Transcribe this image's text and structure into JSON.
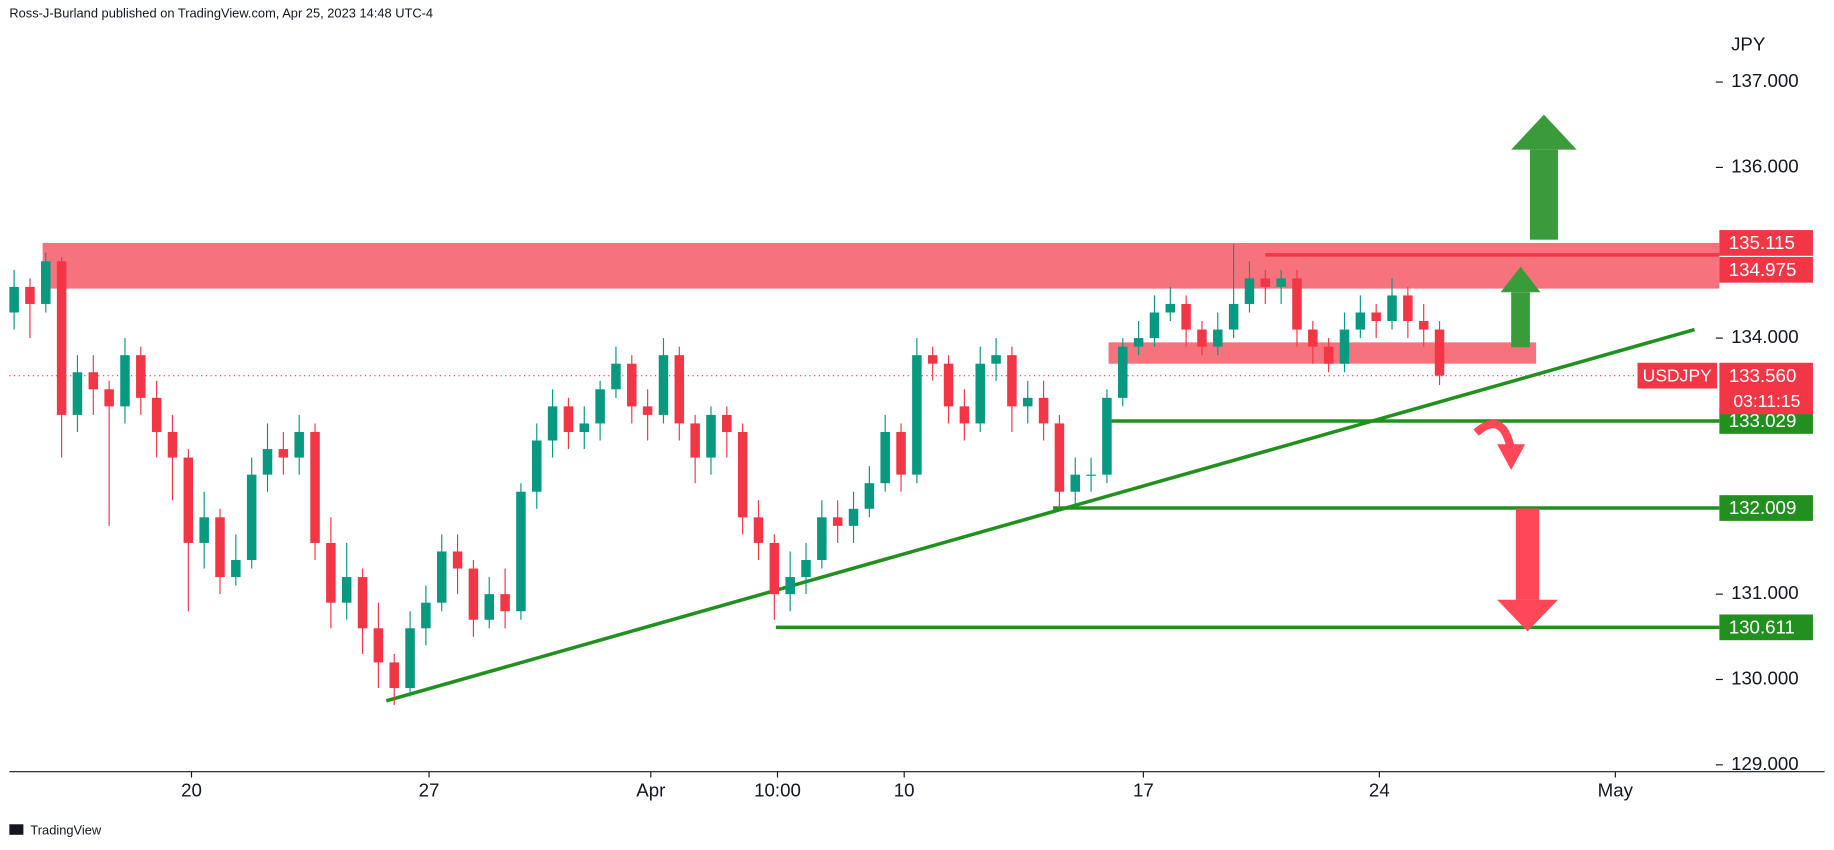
{
  "header": "Ross-J-Burland published on TradingView.com, Apr 25, 2023 14:48 UTC-4",
  "footer": "TradingView",
  "chart_data": {
    "type": "candlestick",
    "currency": "JPY",
    "up_color": "#089981",
    "down_color": "#f23645",
    "xlim": [
      -0.3,
      107.3
    ],
    "xticks": [
      {
        "value": 11.2,
        "label": "20"
      },
      {
        "value": 26.2,
        "label": "27"
      },
      {
        "value": 40.2,
        "label": "Apr"
      },
      {
        "value": 48.2,
        "label": "10:00"
      },
      {
        "value": 56.2,
        "label": "10"
      },
      {
        "value": 71.3,
        "label": "17"
      },
      {
        "value": 86.2,
        "label": "24"
      },
      {
        "value": 101.1,
        "label": "May"
      }
    ],
    "ylim": [
      128.92,
      137.66
    ],
    "yticks": [
      {
        "value": 129,
        "label": "129.000"
      },
      {
        "value": 130,
        "label": "130.000"
      },
      {
        "value": 131,
        "label": "131.000"
      },
      {
        "value": 134,
        "label": "134.000"
      },
      {
        "value": 136,
        "label": "136.000"
      },
      {
        "value": 137,
        "label": "137.000"
      }
    ],
    "open": [
      134.3,
      134.6,
      134.4,
      134.9,
      133.1,
      133.6,
      133.4,
      133.2,
      133.8,
      133.3,
      132.9,
      132.6,
      131.6,
      131.9,
      131.2,
      131.4,
      132.4,
      132.7,
      132.6,
      132.9,
      131.6,
      130.9,
      131.2,
      130.6,
      130.2,
      129.9,
      130.6,
      130.9,
      131.5,
      131.3,
      130.7,
      131.0,
      130.8,
      132.2,
      132.8,
      133.2,
      132.9,
      133.0,
      133.4,
      133.7,
      133.2,
      133.1,
      133.8,
      133.0,
      132.6,
      133.1,
      132.9,
      131.9,
      131.6,
      131.0,
      131.2,
      131.4,
      131.9,
      131.8,
      132.0,
      132.3,
      132.9,
      132.4,
      133.8,
      133.7,
      133.2,
      133.0,
      133.7,
      133.8,
      133.2,
      133.3,
      133.0,
      132.2,
      132.4,
      132.4,
      133.3,
      133.9,
      134.0,
      134.3,
      134.4,
      134.1,
      133.9,
      134.1,
      134.4,
      134.7,
      134.6,
      134.7,
      134.1,
      133.9,
      133.7,
      134.1,
      134.3,
      134.2,
      134.5,
      134.2,
      134.1
    ],
    "high": [
      134.8,
      134.7,
      135.0,
      134.95,
      133.8,
      133.8,
      133.5,
      134.0,
      133.9,
      133.5,
      133.1,
      132.7,
      132.2,
      132.0,
      131.7,
      132.6,
      133.0,
      132.9,
      133.1,
      133.0,
      131.9,
      131.6,
      131.3,
      130.9,
      130.3,
      130.8,
      131.1,
      131.7,
      131.7,
      131.4,
      131.2,
      131.3,
      132.3,
      133.0,
      133.4,
      133.3,
      133.2,
      133.5,
      133.9,
      133.8,
      133.4,
      134.0,
      133.9,
      133.1,
      133.2,
      133.2,
      133.0,
      132.1,
      131.7,
      131.5,
      131.6,
      132.1,
      132.1,
      132.2,
      132.5,
      133.1,
      133.0,
      134.0,
      133.9,
      133.8,
      133.4,
      133.9,
      134.0,
      133.9,
      133.5,
      133.5,
      133.1,
      132.6,
      132.6,
      133.4,
      134.0,
      134.2,
      134.5,
      134.6,
      134.5,
      134.2,
      134.3,
      135.1,
      134.9,
      134.8,
      134.8,
      134.8,
      134.2,
      134.0,
      134.3,
      134.5,
      134.4,
      134.7,
      134.6,
      134.4,
      134.2
    ],
    "low": [
      134.1,
      134.0,
      134.3,
      132.6,
      132.9,
      133.1,
      131.8,
      133.0,
      133.1,
      132.6,
      132.1,
      130.8,
      131.3,
      131.0,
      131.1,
      131.3,
      132.2,
      132.4,
      132.4,
      131.4,
      130.6,
      130.7,
      130.3,
      129.9,
      129.7,
      129.8,
      130.4,
      130.8,
      131.0,
      130.5,
      130.6,
      130.6,
      130.7,
      132.0,
      132.6,
      132.7,
      132.7,
      132.8,
      133.3,
      133.0,
      132.8,
      133.0,
      132.8,
      132.3,
      132.4,
      132.6,
      131.7,
      131.4,
      130.7,
      130.8,
      131.0,
      131.3,
      131.6,
      131.6,
      131.9,
      132.2,
      132.2,
      132.3,
      133.5,
      133.0,
      132.8,
      132.9,
      133.5,
      132.9,
      133.0,
      132.8,
      132.0,
      132.0,
      132.2,
      132.3,
      133.2,
      133.8,
      133.9,
      134.2,
      133.9,
      133.8,
      133.8,
      134.0,
      134.3,
      134.4,
      134.4,
      133.9,
      133.7,
      133.6,
      133.6,
      134.0,
      134.0,
      134.1,
      134.0,
      133.9,
      133.45
    ],
    "close": [
      134.6,
      134.4,
      134.9,
      133.1,
      133.6,
      133.4,
      133.2,
      133.8,
      133.3,
      132.9,
      132.6,
      131.6,
      131.9,
      131.2,
      131.4,
      132.4,
      132.7,
      132.6,
      132.9,
      131.6,
      130.9,
      131.2,
      130.6,
      130.2,
      129.9,
      130.6,
      130.9,
      131.5,
      131.3,
      130.7,
      131.0,
      130.8,
      132.2,
      132.8,
      133.2,
      132.9,
      133.0,
      133.4,
      133.7,
      133.2,
      133.1,
      133.8,
      133.0,
      132.6,
      133.1,
      132.9,
      131.9,
      131.6,
      131.0,
      131.2,
      131.4,
      131.9,
      131.8,
      132.0,
      132.3,
      132.9,
      132.4,
      133.8,
      133.7,
      133.2,
      133.0,
      133.7,
      133.8,
      133.2,
      133.3,
      133.0,
      132.2,
      132.4,
      132.4,
      133.3,
      133.9,
      134.0,
      134.3,
      134.4,
      134.1,
      133.9,
      134.1,
      134.4,
      134.7,
      134.6,
      134.7,
      134.1,
      133.9,
      133.7,
      134.1,
      134.3,
      134.2,
      134.5,
      134.2,
      134.1,
      133.56
    ],
    "zones": [
      {
        "from": 134.58,
        "to": 135.115,
        "start": 1.8,
        "color": "#f23645"
      },
      {
        "from": 133.7,
        "to": 133.95,
        "start": 69.1,
        "end": 96.1,
        "color": "#f23645"
      }
    ],
    "levels": [
      {
        "value": 135.115,
        "color": "#f23645"
      },
      {
        "value": 134.975,
        "color": "#f23645",
        "start": 79.0
      },
      {
        "value": 133.029,
        "color": "#22901e",
        "start": 69.1
      },
      {
        "value": 132.009,
        "color": "#22901e",
        "start": 65.6
      },
      {
        "value": 130.611,
        "color": "#22901e",
        "start": 48.1
      }
    ],
    "trendline": {
      "x": [
        23.5,
        106.1
      ],
      "y": [
        129.75,
        134.1
      ],
      "color": "#22901e"
    },
    "last": {
      "name": "USDJPY",
      "value": 133.56,
      "label": "133.560",
      "countdown": "03:11:15",
      "color": "#f23645"
    }
  }
}
